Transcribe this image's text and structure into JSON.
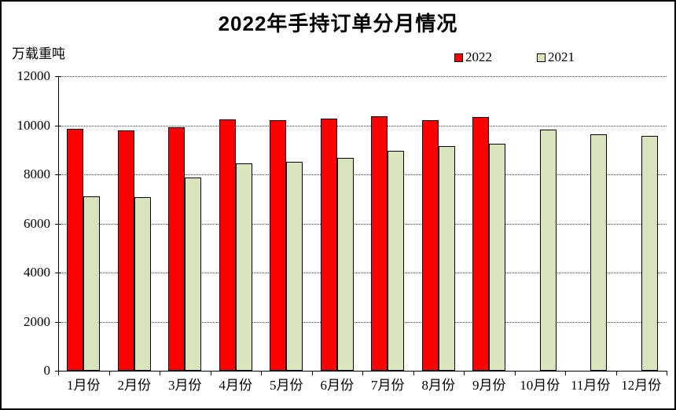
{
  "chart_data": {
    "type": "bar",
    "title": "2022年手持订单分月情况",
    "ylabel": "万载重吨",
    "xlabel": "",
    "categories": [
      "1月份",
      "2月份",
      "3月份",
      "4月份",
      "5月份",
      "6月份",
      "7月份",
      "8月份",
      "9月份",
      "10月份",
      "11月份",
      "12月份"
    ],
    "series": [
      {
        "name": "2022",
        "color": "#FF0000",
        "values": [
          9846,
          9798,
          9910,
          10247,
          10213,
          10274,
          10366,
          10206,
          10325,
          null,
          null,
          null
        ]
      },
      {
        "name": "2021",
        "color": "#D8E4BC",
        "values": [
          7111,
          7063,
          7867,
          8439,
          8522,
          8660,
          8967,
          9147,
          9244,
          9815,
          9640,
          9584
        ]
      }
    ],
    "ylim": [
      0,
      12000
    ],
    "ytick_step": 2000,
    "ytick_labels": [
      "0",
      "2000",
      "4000",
      "6000",
      "8000",
      "10000",
      "12000"
    ],
    "grid": "horizontal-dotted",
    "legend_position": "top-right",
    "bar_outline_color": "#000000",
    "background_color": "#FFFFFF"
  },
  "legend": {
    "items": [
      {
        "label": "2022"
      },
      {
        "label": "2021"
      }
    ]
  }
}
